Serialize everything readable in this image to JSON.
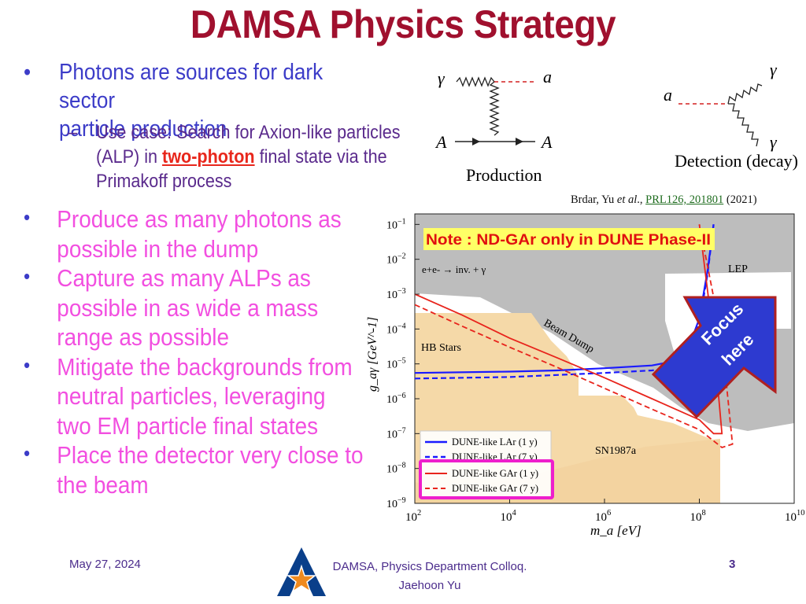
{
  "title": "DAMSA Physics Strategy",
  "intro": {
    "bullet1_line1": "Photons are sources for dark sector",
    "bullet1_line2": "particle production",
    "sub_dash": "–",
    "sub_line1": "Use case: Search for Axion-like particles",
    "sub_pre": "(ALP) in ",
    "sub_highlight": "two-photon",
    "sub_post": " final state via the",
    "sub_line3": "Primakoff process"
  },
  "bullet_symbol": "•",
  "bullets": [
    [
      "Produce as many photons as",
      "possible in the dump"
    ],
    [
      "Capture as many ALPs as",
      "possible in as wide a mass",
      "range as possible"
    ],
    [
      "Mitigate the backgrounds from",
      "neutral particles, leveraging",
      "two EM particle final states"
    ],
    [
      "Place the detector very close to",
      "the beam"
    ]
  ],
  "diagram": {
    "production_label": "Production",
    "detection_label": "Detection (decay)",
    "gamma": "γ",
    "a": "a",
    "A": "A"
  },
  "citation": {
    "authors_pre": "Brdar, Yu ",
    "etal": "et al",
    "authors_post": "., ",
    "ref": "PRL126, 201801",
    "year": " (2021)"
  },
  "chart_data": {
    "type": "line",
    "xlabel": "m_a [eV]",
    "ylabel": "g_aγ [GeV^-1]",
    "xscale": "log",
    "yscale": "log",
    "xlim": [
      100,
      10000000000
    ],
    "ylim": [
      1e-09,
      0.2
    ],
    "x_tick_labels": [
      "10^2",
      "10^4",
      "10^6",
      "10^8",
      "10^10"
    ],
    "y_tick_labels": [
      "10^-1",
      "10^-2",
      "10^-3",
      "10^-4",
      "10^-5",
      "10^-6",
      "10^-7",
      "10^-8",
      "10^-9"
    ],
    "region_labels": [
      "e+e- → inv. + γ",
      "LEP",
      "Beam Dump",
      "HB Stars",
      "SN1987a"
    ],
    "note": "Note : ND-GAr only in DUNE Phase-II",
    "callout": "Focus here",
    "series": [
      {
        "name": "DUNE-like LAr (1 y)",
        "color": "#1a1aff",
        "style": "solid",
        "x": [
          100,
          10000,
          100000,
          1000000,
          10000000,
          30000000,
          60000000,
          100000000,
          150000000,
          200000000
        ],
        "y": [
          5.5e-06,
          6e-06,
          6.5e-06,
          7.5e-06,
          9e-06,
          1.2e-05,
          3e-05,
          0.0002,
          0.005,
          0.1
        ]
      },
      {
        "name": "DUNE-like LAr (7 y)",
        "color": "#1a1aff",
        "style": "dashed",
        "x": [
          100,
          10000,
          100000,
          1000000,
          10000000,
          30000000,
          60000000,
          100000000,
          150000000,
          200000000
        ],
        "y": [
          3.8e-06,
          4.2e-06,
          4.8e-06,
          5.5e-06,
          6.5e-06,
          8e-06,
          2e-05,
          0.00015,
          0.004,
          0.1
        ]
      },
      {
        "name": "DUNE-like GAr (1 y)",
        "color": "#e8241c",
        "style": "solid",
        "x": [
          100,
          1000,
          10000,
          100000,
          1000000,
          10000000,
          100000000,
          200000000,
          300000000,
          200000000,
          100000000
        ],
        "y": [
          0.001,
          0.00025,
          5.5e-05,
          1.5e-05,
          4e-06,
          1e-06,
          2.5e-07,
          1e-07,
          1e-07,
          5e-05,
          0.1
        ]
      },
      {
        "name": "DUNE-like GAr (7 y)",
        "color": "#e8241c",
        "style": "dashed",
        "x": [
          100,
          1000,
          10000,
          100000,
          1000000,
          10000000,
          100000000,
          300000000,
          500000000,
          300000000,
          100000000
        ],
        "y": [
          0.0005,
          0.00012,
          3e-05,
          8e-06,
          2e-06,
          5e-07,
          1.3e-07,
          4e-08,
          5e-08,
          5e-05,
          0.1
        ]
      }
    ]
  },
  "footer": {
    "date": "May 27, 2024",
    "center_line1": "DAMSA, Physics Department Colloq.",
    "center_line2": "Jaehoon Yu",
    "page": "3"
  },
  "colors": {
    "title": "#a0102e",
    "bullet_blue": "#3c3cc8",
    "pink": "#f24fe0",
    "highlight": "#e8271c",
    "callout": "#2d3ad0"
  }
}
